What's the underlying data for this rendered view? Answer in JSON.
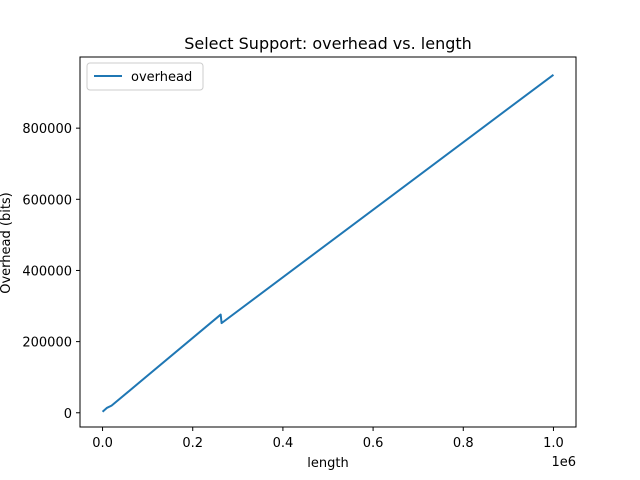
{
  "chart_data": {
    "type": "line",
    "title": "Select Support: overhead vs. length",
    "xlabel": "length",
    "ylabel": "Overhead (bits)",
    "x_offset_label": "1e6",
    "xlim": [
      -0.05,
      1.05
    ],
    "ylim": [
      -40000,
      1000000
    ],
    "xticks": [
      0.0,
      0.2,
      0.4,
      0.6,
      0.8,
      1.0
    ],
    "xtick_labels": [
      "0.0",
      "0.2",
      "0.4",
      "0.6",
      "0.8",
      "1.0"
    ],
    "yticks": [
      0,
      200000,
      400000,
      600000,
      800000
    ],
    "ytick_labels": [
      "0",
      "200000",
      "400000",
      "600000",
      "800000"
    ],
    "grid": false,
    "legend_position": "upper left",
    "series": [
      {
        "name": "overhead",
        "color": "#1f77b4",
        "x": [
          0.0,
          0.01,
          0.02,
          0.262,
          0.264,
          1.0
        ],
        "y": [
          3000,
          14000,
          20000,
          276000,
          252000,
          950000
        ]
      }
    ]
  }
}
